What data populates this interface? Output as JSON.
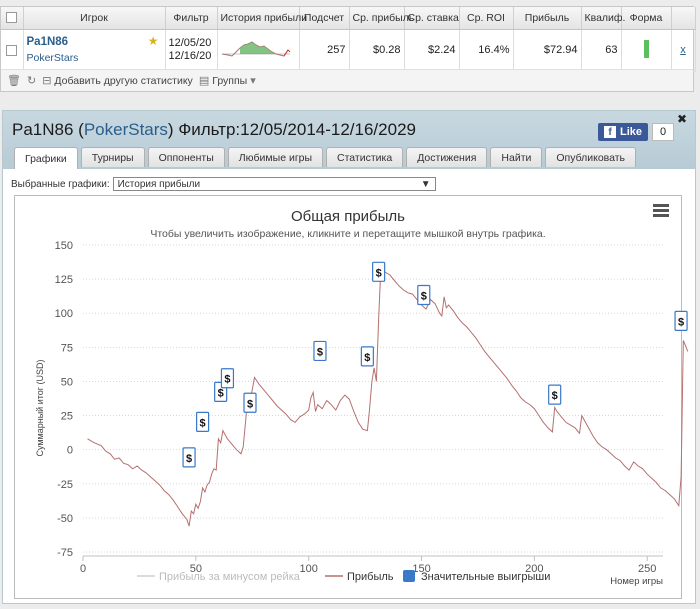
{
  "stats_table": {
    "headers": [
      "",
      "Игрок",
      "Фильтр",
      "История прибыли",
      "Подсчет",
      "Ср. прибыль",
      "Ср. ставка",
      "Ср. ROI",
      "Прибыль",
      "Квалиф.",
      "Форма",
      ""
    ],
    "row": {
      "player_name": "Pa1N86",
      "site": "PokerStars",
      "filter_from": "12/05/20",
      "filter_to": "12/16/20",
      "count": "257",
      "avg_profit": "$0.28",
      "avg_stake": "$2.24",
      "avg_roi": "16.4%",
      "profit": "$72.94",
      "qualification": "63",
      "remove": "x"
    },
    "toolbar": {
      "add_label": "Добавить другую статистику",
      "groups_label": "Группы"
    }
  },
  "main": {
    "title_name": "Pa1N86",
    "title_site": "PokerStars",
    "title_filter": "Фильтр:12/05/2014-12/16/2029",
    "fb_like": "Like",
    "fb_count": "0",
    "tabs": [
      "Графики",
      "Турниры",
      "Оппоненты",
      "Любимые игры",
      "Статистика",
      "Достижения",
      "Найти",
      "Опубликовать"
    ],
    "select_label": "Выбранные графики:",
    "select_value": "История прибыли"
  },
  "chart_data": {
    "type": "line",
    "title": "Общая прибыль",
    "subtitle": "Чтобы увеличить изображение, кликните и перетащите мышкой внутрь графика.",
    "ylabel": "Суммарный итог (USD)",
    "xlabel": "Номер игры",
    "xlim": [
      0,
      257
    ],
    "ylim": [
      -75,
      150
    ],
    "x_ticks": [
      0,
      50,
      100,
      150,
      200,
      250
    ],
    "y_ticks": [
      150,
      125,
      100,
      75,
      50,
      25,
      0,
      -25,
      -50,
      -75
    ],
    "grid": true,
    "legend_position": "bottom",
    "series": [
      {
        "name": "Прибыль",
        "color": "#b5706f",
        "points": [
          [
            2,
            8
          ],
          [
            5,
            5
          ],
          [
            8,
            3
          ],
          [
            10,
            -1
          ],
          [
            12,
            -3
          ],
          [
            14,
            -7
          ],
          [
            16,
            -6
          ],
          [
            18,
            -10
          ],
          [
            20,
            -11
          ],
          [
            22,
            -14
          ],
          [
            24,
            -12
          ],
          [
            26,
            -15
          ],
          [
            28,
            -17
          ],
          [
            30,
            -20
          ],
          [
            32,
            -23
          ],
          [
            34,
            -26
          ],
          [
            36,
            -30
          ],
          [
            38,
            -33
          ],
          [
            40,
            -37
          ],
          [
            42,
            -42
          ],
          [
            44,
            -47
          ],
          [
            46,
            -51
          ],
          [
            47,
            -56
          ],
          [
            48,
            -45
          ],
          [
            49,
            -47
          ],
          [
            50,
            -40
          ],
          [
            51,
            -43
          ],
          [
            52,
            -38
          ],
          [
            53,
            -28
          ],
          [
            54,
            -31
          ],
          [
            55,
            -26
          ],
          [
            56,
            -24
          ],
          [
            57,
            -18
          ],
          [
            58,
            -14
          ],
          [
            59,
            -15
          ],
          [
            60,
            8
          ],
          [
            61,
            5
          ],
          [
            62,
            14
          ],
          [
            63,
            11
          ],
          [
            64,
            8
          ],
          [
            66,
            4
          ],
          [
            68,
            0
          ],
          [
            70,
            -3
          ],
          [
            71,
            2
          ],
          [
            72,
            20
          ],
          [
            73,
            38
          ],
          [
            74,
            36
          ],
          [
            75,
            44
          ],
          [
            76,
            53
          ],
          [
            78,
            48
          ],
          [
            80,
            44
          ],
          [
            82,
            40
          ],
          [
            84,
            36
          ],
          [
            86,
            32
          ],
          [
            88,
            29
          ],
          [
            90,
            26
          ],
          [
            92,
            22
          ],
          [
            94,
            20
          ],
          [
            96,
            24
          ],
          [
            98,
            26
          ],
          [
            100,
            29
          ],
          [
            101,
            38
          ],
          [
            102,
            42
          ],
          [
            103,
            28
          ],
          [
            104,
            33
          ],
          [
            106,
            30
          ],
          [
            108,
            36
          ],
          [
            110,
            33
          ],
          [
            112,
            29
          ],
          [
            114,
            36
          ],
          [
            116,
            40
          ],
          [
            118,
            37
          ],
          [
            120,
            28
          ],
          [
            122,
            20
          ],
          [
            124,
            15
          ],
          [
            126,
            14
          ],
          [
            127,
            30
          ],
          [
            128,
            50
          ],
          [
            129,
            60
          ],
          [
            130,
            50
          ],
          [
            131,
            95
          ],
          [
            132,
            134
          ],
          [
            133,
            132
          ],
          [
            134,
            130
          ],
          [
            136,
            128
          ],
          [
            138,
            124
          ],
          [
            140,
            120
          ],
          [
            142,
            117
          ],
          [
            144,
            115
          ],
          [
            146,
            114
          ],
          [
            148,
            110
          ],
          [
            150,
            106
          ],
          [
            152,
            103
          ],
          [
            154,
            110
          ],
          [
            156,
            107
          ],
          [
            158,
            100
          ],
          [
            159,
            98
          ],
          [
            160,
            112
          ],
          [
            161,
            104
          ],
          [
            162,
            106
          ],
          [
            164,
            102
          ],
          [
            166,
            97
          ],
          [
            168,
            93
          ],
          [
            170,
            90
          ],
          [
            172,
            86
          ],
          [
            174,
            82
          ],
          [
            176,
            77
          ],
          [
            178,
            72
          ],
          [
            180,
            68
          ],
          [
            182,
            64
          ],
          [
            184,
            60
          ],
          [
            186,
            56
          ],
          [
            188,
            52
          ],
          [
            190,
            47
          ],
          [
            192,
            43
          ],
          [
            194,
            38
          ],
          [
            196,
            35
          ],
          [
            198,
            33
          ],
          [
            200,
            30
          ],
          [
            202,
            25
          ],
          [
            204,
            20
          ],
          [
            206,
            16
          ],
          [
            208,
            13
          ],
          [
            209,
            31
          ],
          [
            210,
            28
          ],
          [
            212,
            24
          ],
          [
            214,
            20
          ],
          [
            216,
            18
          ],
          [
            218,
            16
          ],
          [
            220,
            12
          ],
          [
            221,
            25
          ],
          [
            222,
            22
          ],
          [
            224,
            16
          ],
          [
            226,
            10
          ],
          [
            228,
            5
          ],
          [
            230,
            2
          ],
          [
            232,
            0
          ],
          [
            234,
            -3
          ],
          [
            236,
            -6
          ],
          [
            238,
            -8
          ],
          [
            240,
            -12
          ],
          [
            242,
            -15
          ],
          [
            244,
            -9
          ],
          [
            246,
            -12
          ],
          [
            248,
            -14
          ],
          [
            250,
            -18
          ],
          [
            252,
            -21
          ],
          [
            254,
            -24
          ],
          [
            256,
            -28
          ],
          [
            258,
            -30
          ],
          [
            260,
            -33
          ],
          [
            262,
            -36
          ],
          [
            264,
            -41
          ],
          [
            265,
            -20
          ],
          [
            266,
            80
          ],
          [
            267,
            76
          ],
          [
            268,
            72
          ]
        ]
      }
    ],
    "big_win_markers": [
      [
        47,
        -6
      ],
      [
        53,
        20
      ],
      [
        61,
        42
      ],
      [
        64,
        52
      ],
      [
        74,
        34
      ],
      [
        105,
        72
      ],
      [
        126,
        68
      ],
      [
        131,
        130
      ],
      [
        151,
        113
      ],
      [
        209,
        40
      ],
      [
        265,
        94
      ]
    ],
    "legend": [
      "Прибыль за минусом рейка",
      "Прибыль",
      "Значительные выигрыши"
    ],
    "colors": {
      "profit": "#b5706f",
      "rake": "#cfcfcf",
      "wins": "#3a78c8"
    },
    "marker_symbol": "$"
  }
}
